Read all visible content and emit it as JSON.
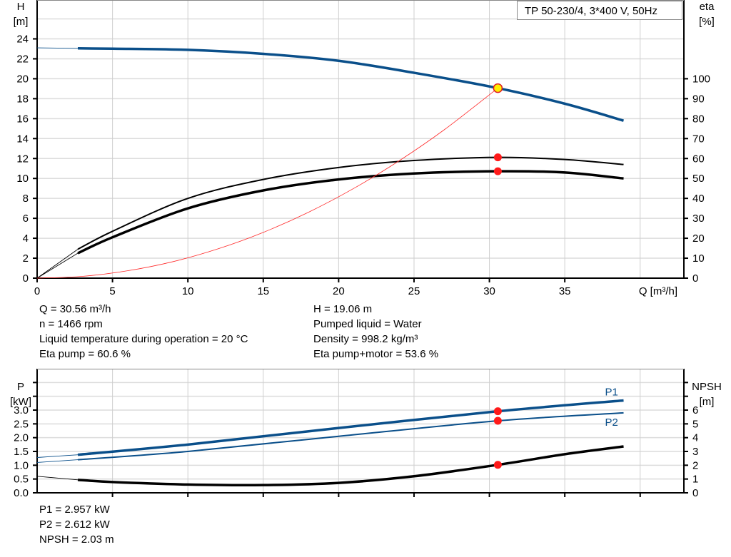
{
  "title": "TP 50-230/4, 3*400 V, 50Hz",
  "colors": {
    "head": "#0a4f8a",
    "eta": "#000000",
    "system": "#ff2a2a",
    "op_point": "#ff1a1a",
    "op_head": "#ffef00",
    "grid": "#dcdcdc"
  },
  "info_top": {
    "left": [
      "Q = 30.56 m³/h",
      "n = 1466 rpm",
      "Liquid temperature during operation = 20 °C",
      "Eta pump = 60.6 %"
    ],
    "right": [
      "H = 19.06 m",
      "Pumped liquid = Water",
      "Density = 998.2 kg/m³",
      "Eta pump+motor = 53.6 %"
    ]
  },
  "info_bottom": [
    "P1 = 2.957 kW",
    "P2 = 2.612 kW",
    "NPSH = 2.03 m"
  ],
  "chart_data": [
    {
      "type": "line",
      "ylabel_left": [
        "H",
        "[m]"
      ],
      "ylabel_right": [
        "eta",
        "[%]"
      ],
      "xlabel": "Q [m³/h]",
      "xlim": [
        0,
        42.9
      ],
      "ylim": [
        0,
        27.9
      ],
      "y2lim": [
        0,
        139.5
      ],
      "grid": true,
      "xticks": [
        0,
        5,
        10,
        15,
        20,
        25,
        30,
        35
      ],
      "yticks": [
        0,
        2,
        4,
        6,
        8,
        10,
        12,
        14,
        16,
        18,
        20,
        22,
        24
      ],
      "y2ticks": [
        0,
        10,
        20,
        30,
        40,
        50,
        60,
        70,
        80,
        90,
        100
      ],
      "series": [
        {
          "id": "H",
          "axis": "left",
          "x": [
            2.7,
            5,
            10,
            15,
            20,
            25,
            30.56,
            35,
            38.9
          ],
          "y": [
            23.05,
            23.02,
            22.9,
            22.5,
            21.8,
            20.6,
            19.06,
            17.5,
            15.8
          ],
          "ext_x": [
            0,
            2.7
          ],
          "ext_y": [
            23.1,
            23.05
          ]
        },
        {
          "id": "eta_pump",
          "axis": "right",
          "x": [
            2.7,
            5,
            10,
            15,
            20,
            25,
            30.56,
            35,
            38.9
          ],
          "y": [
            14.5,
            23.5,
            40,
            49.5,
            55.5,
            59,
            60.6,
            59.5,
            57
          ],
          "ext_x": [
            0,
            2.7
          ],
          "ext_y": [
            0,
            14.5
          ]
        },
        {
          "id": "eta_pump_motor",
          "axis": "right",
          "x": [
            2.7,
            5,
            10,
            15,
            20,
            25,
            30.56,
            35,
            38.9
          ],
          "y": [
            12.5,
            20.5,
            35,
            44,
            49.5,
            52.5,
            53.6,
            53,
            50
          ],
          "ext_x": [
            0,
            2.7
          ],
          "ext_y": [
            0,
            12.5
          ]
        },
        {
          "id": "system",
          "axis": "left",
          "x": [
            0,
            3,
            6,
            9,
            12,
            15,
            18,
            21,
            24,
            27,
            30.56
          ],
          "y": [
            0,
            0.18,
            0.74,
            1.65,
            2.94,
            4.59,
            6.61,
            9,
            11.76,
            14.88,
            19.06
          ]
        }
      ],
      "points": [
        {
          "axis": "left",
          "x": 30.56,
          "y": 19.06,
          "style": "op_head"
        },
        {
          "axis": "right",
          "x": 30.56,
          "y": 60.6,
          "style": "op_point"
        },
        {
          "axis": "right",
          "x": 30.56,
          "y": 53.6,
          "style": "op_point"
        }
      ]
    },
    {
      "type": "line",
      "ylabel_left": [
        "P",
        "[kW]"
      ],
      "ylabel_right": [
        "NPSH",
        "[m]"
      ],
      "xlim": [
        0,
        42.9
      ],
      "ylim": [
        0,
        4.5
      ],
      "y2lim": [
        0,
        9
      ],
      "grid": true,
      "xticks": [
        5,
        10,
        15,
        20,
        25,
        30,
        35,
        40
      ],
      "yticks": [
        "0.0",
        "0.5",
        "1.0",
        "1.5",
        "2.0",
        "2.5",
        "3.0"
      ],
      "yticks_unlabeled": [
        3.5,
        4.0
      ],
      "y2ticks": [
        0,
        1,
        2,
        3,
        4,
        5,
        6
      ],
      "y2ticks_unlabeled": [
        7,
        8
      ],
      "series": [
        {
          "id": "P1",
          "name": "P1",
          "axis": "left",
          "x": [
            2.7,
            10,
            20,
            30.56,
            38.9
          ],
          "y": [
            1.38,
            1.75,
            2.35,
            2.957,
            3.35
          ],
          "ext_x": [
            0,
            2.7
          ],
          "ext_y": [
            1.28,
            1.38
          ]
        },
        {
          "id": "P2",
          "name": "P2",
          "axis": "left",
          "x": [
            2.7,
            10,
            20,
            30.56,
            38.9
          ],
          "y": [
            1.2,
            1.5,
            2.05,
            2.612,
            2.9
          ],
          "ext_x": [
            0,
            2.7
          ],
          "ext_y": [
            1.1,
            1.2
          ]
        },
        {
          "id": "NPSH",
          "axis": "right",
          "x": [
            2.7,
            5,
            10,
            15,
            20,
            25,
            30.56,
            35,
            38.9
          ],
          "y": [
            0.94,
            0.78,
            0.6,
            0.56,
            0.72,
            1.2,
            2.03,
            2.8,
            3.36
          ],
          "ext_x": [
            0,
            2.7
          ],
          "ext_y": [
            1.2,
            0.94
          ]
        }
      ],
      "points": [
        {
          "axis": "left",
          "x": 30.56,
          "y": 2.957,
          "style": "op_point"
        },
        {
          "axis": "left",
          "x": 30.56,
          "y": 2.612,
          "style": "op_point"
        },
        {
          "axis": "right",
          "x": 30.56,
          "y": 2.03,
          "style": "op_point"
        }
      ]
    }
  ]
}
